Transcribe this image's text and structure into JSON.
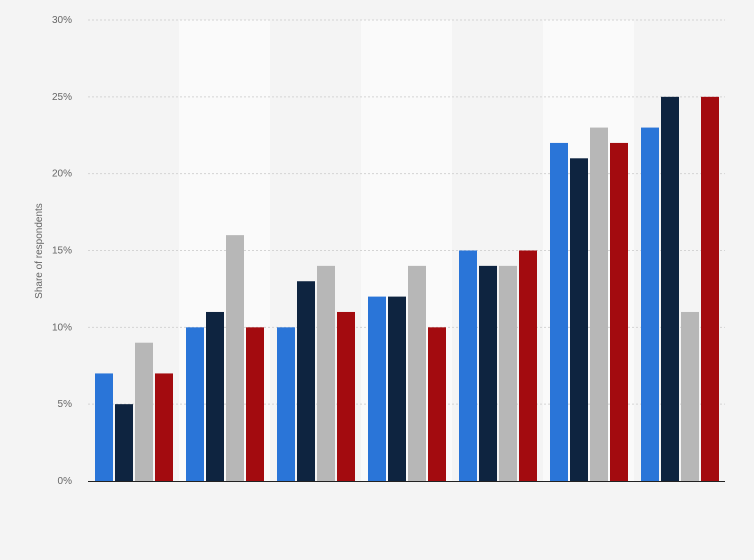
{
  "chart_data": {
    "type": "bar",
    "title": "",
    "xlabel": "",
    "ylabel": "Share of respondents",
    "ylim": [
      0,
      30
    ],
    "yticks": [
      0,
      5,
      10,
      15,
      20,
      25,
      30
    ],
    "ytick_suffix": "%",
    "grid": true,
    "legend": "none",
    "categories": [
      "",
      "",
      "",
      "",
      "",
      "",
      ""
    ],
    "series": [
      {
        "color": "#2a75d8",
        "values": [
          7,
          10,
          10,
          12,
          15,
          22,
          23
        ]
      },
      {
        "color": "#0e2440",
        "values": [
          5,
          11,
          13,
          12,
          14,
          21,
          25
        ]
      },
      {
        "color": "#b7b7b7",
        "values": [
          9,
          16,
          14,
          14,
          14,
          23,
          11
        ]
      },
      {
        "color": "#a30b0f",
        "values": [
          7,
          10,
          11,
          10,
          15,
          22,
          25
        ]
      }
    ]
  }
}
